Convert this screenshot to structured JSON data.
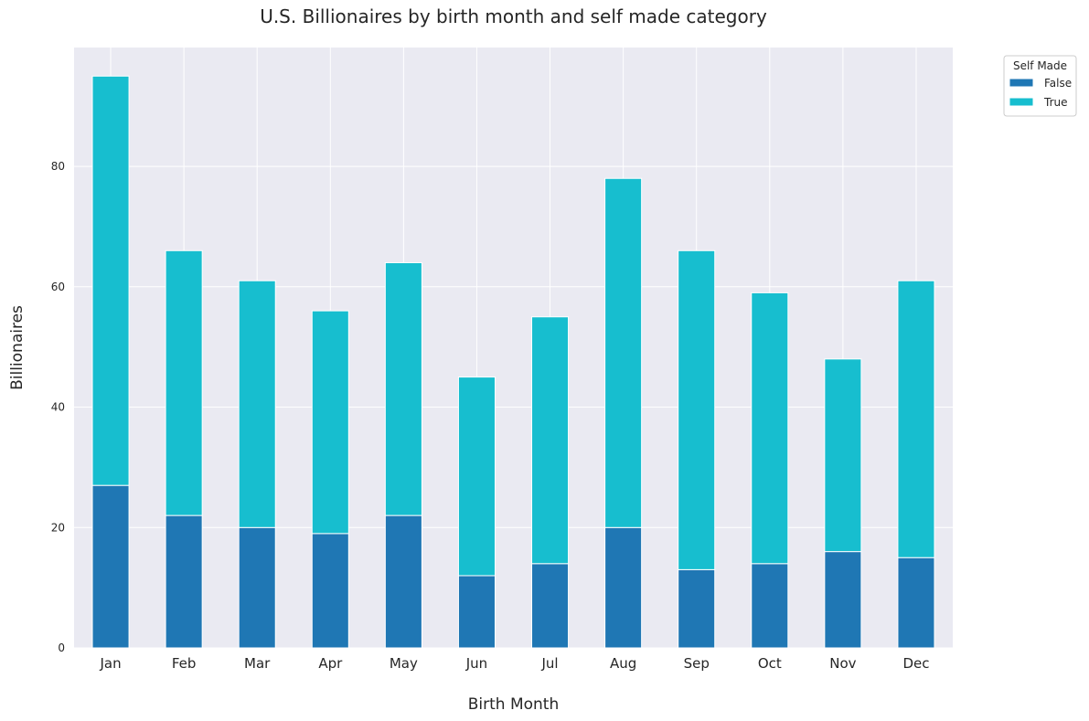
{
  "chart_data": {
    "type": "bar",
    "stacked": true,
    "title": "U.S. Billionaires by birth month and self made category",
    "xlabel": "Birth Month",
    "ylabel": "Billionaires",
    "categories": [
      "Jan",
      "Feb",
      "Mar",
      "Apr",
      "May",
      "Jun",
      "Jul",
      "Aug",
      "Sep",
      "Oct",
      "Nov",
      "Dec"
    ],
    "series": [
      {
        "name": "False",
        "color": "#1f77b4",
        "values": [
          27,
          22,
          20,
          19,
          22,
          12,
          14,
          20,
          13,
          14,
          16,
          15
        ]
      },
      {
        "name": "True",
        "color": "#17becf",
        "values": [
          68,
          44,
          41,
          37,
          42,
          33,
          41,
          58,
          53,
          45,
          32,
          46
        ]
      }
    ],
    "ylim": [
      0,
      99.75
    ],
    "yticks": [
      0,
      20,
      40,
      60,
      80
    ],
    "grid": true,
    "legend": {
      "title": "Self Made",
      "placement": "outside-top-right"
    },
    "background": "#eaeaf2"
  }
}
